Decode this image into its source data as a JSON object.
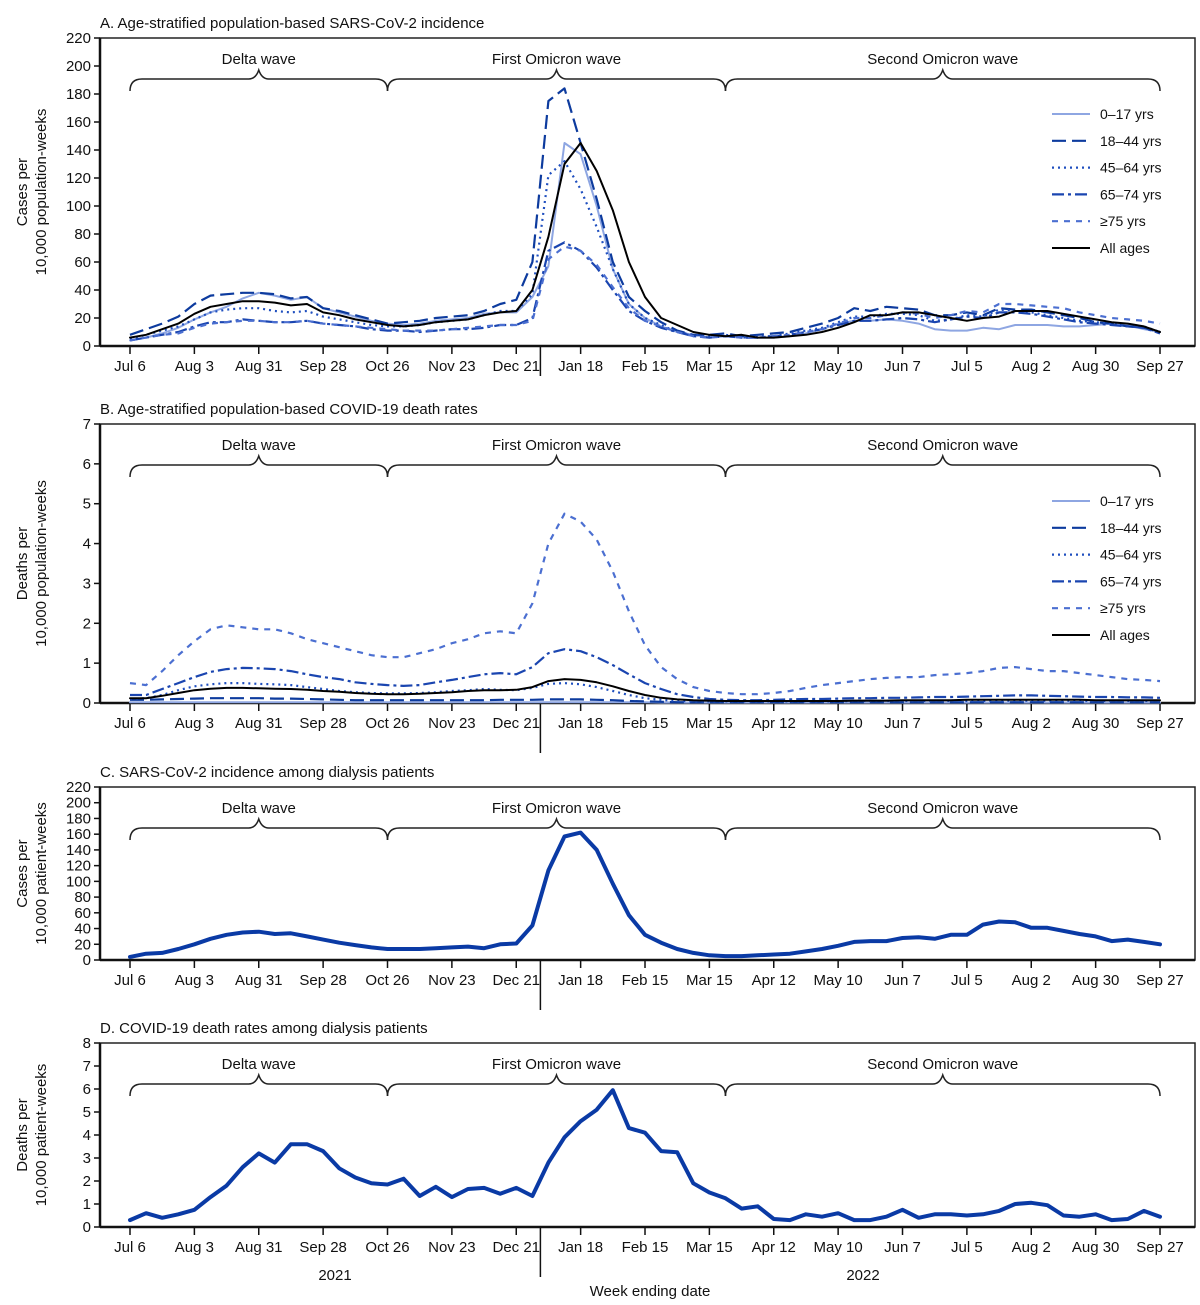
{
  "weeks": [
    "Jul 6",
    "Jul 13",
    "Jul 20",
    "Jul 27",
    "Aug 3",
    "Aug 10",
    "Aug 17",
    "Aug 24",
    "Aug 31",
    "Sep 7",
    "Sep 14",
    "Sep 21",
    "Sep 28",
    "Oct 5",
    "Oct 12",
    "Oct 19",
    "Oct 26",
    "Nov 2",
    "Nov 9",
    "Nov 16",
    "Nov 23",
    "Nov 30",
    "Dec 7",
    "Dec 14",
    "Dec 21",
    "Dec 28",
    "Jan 4",
    "Jan 11",
    "Jan 18",
    "Jan 25",
    "Feb 1",
    "Feb 8",
    "Feb 15",
    "Feb 22",
    "Mar 1",
    "Mar 8",
    "Mar 15",
    "Mar 22",
    "Mar 29",
    "Apr 5",
    "Apr 12",
    "Apr 19",
    "Apr 26",
    "May 3",
    "May 10",
    "May 17",
    "May 24",
    "May 31",
    "Jun 7",
    "Jun 14",
    "Jun 21",
    "Jun 28",
    "Jul 5",
    "Jul 12",
    "Jul 19",
    "Jul 26",
    "Aug 2",
    "Aug 9",
    "Aug 16",
    "Aug 23",
    "Aug 30",
    "Sep 6",
    "Sep 13",
    "Sep 20",
    "Sep 27"
  ],
  "x_tick_labels": [
    "Jul 6",
    "Aug 3",
    "Aug 31",
    "Sep 28",
    "Oct 26",
    "Nov 23",
    "Dec 21",
    "Jan 18",
    "Feb 15",
    "Mar 15",
    "Apr 12",
    "May 10",
    "Jun 7",
    "Jul 5",
    "Aug 2",
    "Aug 30",
    "Sep 27"
  ],
  "years": [
    "2021",
    "2022"
  ],
  "xlabel": "Week ending date",
  "waves": [
    {
      "label": "Delta wave",
      "start": "Jul 6",
      "end": "Oct 26"
    },
    {
      "label": "First Omicron wave",
      "start": "Oct 26",
      "end": "Mar 22"
    },
    {
      "label": "Second Omicron wave",
      "start": "Mar 22",
      "end": "Sep 27"
    }
  ],
  "colors": {
    "age_0_17": "#8ea6e2",
    "age_18_44": "#0d3b9e",
    "age_45_64": "#1f4fbf",
    "age_65_74": "#1a45b0",
    "age_75": "#4b6fd1",
    "all": "#000000",
    "dialysis": "#0a3aa5"
  },
  "chart_data": [
    {
      "type": "line",
      "title": "A. Age-stratified population-based SARS-CoV-2 incidence",
      "ylabel": [
        "Cases per",
        "10,000 population-weeks"
      ],
      "ylim": [
        0,
        220
      ],
      "ytick_step": 20,
      "legend": "right",
      "series": [
        {
          "name": "0–17 yrs",
          "style": "solid-light",
          "values": [
            4,
            6,
            9,
            13,
            19,
            24,
            28,
            34,
            38,
            36,
            33,
            35,
            27,
            24,
            21,
            18,
            16,
            15,
            16,
            18,
            19,
            20,
            23,
            24,
            24,
            35,
            57,
            145,
            137,
            100,
            55,
            30,
            20,
            14,
            10,
            8,
            6,
            7,
            6,
            6,
            6,
            7,
            9,
            12,
            16,
            18,
            18,
            19,
            18,
            16,
            12,
            11,
            11,
            13,
            12,
            15,
            15,
            15,
            14,
            14,
            15,
            16,
            15,
            12,
            10
          ]
        },
        {
          "name": "18–44 yrs",
          "style": "long-dash",
          "values": [
            8,
            12,
            16,
            21,
            30,
            36,
            37,
            38,
            38,
            37,
            34,
            35,
            27,
            25,
            22,
            19,
            16,
            17,
            18,
            20,
            21,
            22,
            25,
            30,
            33,
            60,
            175,
            184,
            145,
            105,
            60,
            35,
            25,
            17,
            11,
            8,
            8,
            9,
            7,
            8,
            9,
            10,
            13,
            16,
            20,
            27,
            25,
            28,
            27,
            26,
            22,
            22,
            24,
            22,
            27,
            26,
            26,
            24,
            22,
            20,
            17,
            16,
            14,
            13,
            10
          ]
        },
        {
          "name": "45–64 yrs",
          "style": "dotted",
          "values": [
            5,
            8,
            11,
            14,
            19,
            24,
            26,
            27,
            27,
            25,
            24,
            25,
            21,
            19,
            17,
            15,
            14,
            14,
            15,
            17,
            18,
            19,
            22,
            25,
            25,
            37,
            122,
            132,
            112,
            85,
            55,
            30,
            20,
            15,
            10,
            8,
            7,
            8,
            6,
            7,
            7,
            9,
            11,
            13,
            17,
            21,
            21,
            23,
            23,
            22,
            18,
            19,
            22,
            21,
            26,
            25,
            24,
            22,
            20,
            18,
            17,
            16,
            14,
            14,
            10
          ]
        },
        {
          "name": "65–74 yrs",
          "style": "dash-dot",
          "values": [
            4,
            6,
            8,
            10,
            14,
            17,
            17,
            19,
            18,
            17,
            17,
            18,
            16,
            15,
            14,
            12,
            11,
            11,
            10,
            11,
            12,
            12,
            13,
            15,
            15,
            20,
            68,
            74,
            68,
            56,
            40,
            25,
            18,
            13,
            10,
            7,
            6,
            7,
            6,
            6,
            7,
            8,
            10,
            12,
            15,
            18,
            18,
            19,
            20,
            19,
            17,
            19,
            21,
            20,
            24,
            24,
            23,
            21,
            19,
            17,
            16,
            15,
            14,
            13,
            9
          ]
        },
        {
          "name": "≥75 yrs",
          "style": "short-dash",
          "values": [
            4,
            6,
            8,
            9,
            13,
            16,
            17,
            18,
            18,
            17,
            17,
            18,
            16,
            15,
            14,
            13,
            12,
            11,
            11,
            11,
            12,
            13,
            14,
            15,
            15,
            18,
            62,
            71,
            68,
            58,
            42,
            27,
            18,
            14,
            10,
            7,
            6,
            7,
            6,
            6,
            7,
            8,
            10,
            12,
            16,
            20,
            20,
            22,
            24,
            23,
            20,
            22,
            25,
            24,
            30,
            30,
            29,
            28,
            27,
            24,
            22,
            20,
            19,
            18,
            16
          ]
        },
        {
          "name": "All ages",
          "style": "solid-black",
          "values": [
            6,
            8,
            12,
            16,
            23,
            28,
            30,
            32,
            32,
            31,
            29,
            30,
            24,
            22,
            19,
            17,
            15,
            14,
            15,
            17,
            18,
            19,
            22,
            24,
            25,
            40,
            78,
            130,
            145,
            125,
            97,
            60,
            35,
            20,
            15,
            10,
            8,
            7,
            8,
            6,
            6,
            7,
            8,
            10,
            13,
            17,
            22,
            22,
            24,
            24,
            22,
            20,
            18,
            20,
            21,
            25,
            25,
            25,
            23,
            21,
            19,
            17,
            16,
            14,
            10
          ]
        }
      ]
    },
    {
      "type": "line",
      "title": "B. Age-stratified population-based COVID-19 death rates",
      "ylabel": [
        "Deaths per",
        "10,000 population-weeks"
      ],
      "ylim": [
        0,
        7
      ],
      "ytick_step": 1,
      "legend": "right",
      "series": [
        {
          "name": "0–17 yrs",
          "style": "solid-light",
          "values": [
            0.02,
            0.02,
            0.02,
            0.02,
            0.02,
            0.02,
            0.02,
            0.02,
            0.02,
            0.02,
            0.02,
            0.02,
            0.02,
            0.02,
            0.02,
            0.02,
            0.02,
            0.02,
            0.02,
            0.02,
            0.02,
            0.02,
            0.02,
            0.02,
            0.02,
            0.02,
            0.02,
            0.02,
            0.02,
            0.02,
            0.02,
            0.02,
            0.02,
            0.01,
            0.01,
            0.01,
            0.01,
            0.01,
            0.01,
            0.01,
            0.01,
            0.01,
            0.01,
            0.01,
            0.01,
            0.01,
            0.01,
            0.01,
            0.01,
            0.01,
            0.01,
            0.01,
            0.01,
            0.01,
            0.01,
            0.01,
            0.01,
            0.01,
            0.01,
            0.01,
            0.01,
            0.01,
            0.01,
            0.01,
            0.01
          ]
        },
        {
          "name": "18–44 yrs",
          "style": "long-dash",
          "values": [
            0.08,
            0.08,
            0.09,
            0.1,
            0.11,
            0.12,
            0.12,
            0.12,
            0.12,
            0.11,
            0.11,
            0.1,
            0.09,
            0.08,
            0.07,
            0.07,
            0.07,
            0.07,
            0.07,
            0.07,
            0.07,
            0.07,
            0.07,
            0.08,
            0.08,
            0.08,
            0.09,
            0.09,
            0.09,
            0.08,
            0.07,
            0.05,
            0.04,
            0.03,
            0.02,
            0.02,
            0.02,
            0.02,
            0.02,
            0.02,
            0.02,
            0.02,
            0.02,
            0.02,
            0.02,
            0.02,
            0.02,
            0.02,
            0.02,
            0.02,
            0.02,
            0.02,
            0.02,
            0.02,
            0.02,
            0.02,
            0.02,
            0.02,
            0.02,
            0.02,
            0.02,
            0.02,
            0.02,
            0.02,
            0.02
          ]
        },
        {
          "name": "45–64 yrs",
          "style": "dotted",
          "values": [
            0.1,
            0.12,
            0.2,
            0.32,
            0.42,
            0.47,
            0.5,
            0.5,
            0.48,
            0.47,
            0.45,
            0.4,
            0.35,
            0.3,
            0.27,
            0.25,
            0.24,
            0.24,
            0.25,
            0.27,
            0.3,
            0.32,
            0.35,
            0.33,
            0.32,
            0.38,
            0.48,
            0.5,
            0.47,
            0.4,
            0.3,
            0.2,
            0.12,
            0.08,
            0.05,
            0.04,
            0.04,
            0.04,
            0.04,
            0.04,
            0.04,
            0.04,
            0.04,
            0.04,
            0.04,
            0.05,
            0.05,
            0.05,
            0.05,
            0.05,
            0.05,
            0.05,
            0.05,
            0.05,
            0.06,
            0.06,
            0.06,
            0.06,
            0.06,
            0.05,
            0.05,
            0.05,
            0.05,
            0.05,
            0.05
          ]
        },
        {
          "name": "65–74 yrs",
          "style": "dash-dot",
          "values": [
            0.2,
            0.2,
            0.35,
            0.5,
            0.65,
            0.78,
            0.85,
            0.88,
            0.87,
            0.85,
            0.8,
            0.72,
            0.65,
            0.6,
            0.52,
            0.48,
            0.45,
            0.43,
            0.45,
            0.52,
            0.58,
            0.65,
            0.72,
            0.75,
            0.72,
            0.9,
            1.25,
            1.35,
            1.3,
            1.15,
            0.95,
            0.72,
            0.5,
            0.35,
            0.22,
            0.15,
            0.1,
            0.08,
            0.07,
            0.07,
            0.08,
            0.09,
            0.1,
            0.1,
            0.11,
            0.12,
            0.12,
            0.13,
            0.13,
            0.14,
            0.15,
            0.15,
            0.16,
            0.17,
            0.18,
            0.19,
            0.19,
            0.18,
            0.17,
            0.16,
            0.15,
            0.15,
            0.14,
            0.14,
            0.13
          ]
        },
        {
          "name": "≥75 yrs",
          "style": "short-dash",
          "values": [
            0.5,
            0.45,
            0.8,
            1.2,
            1.55,
            1.85,
            1.95,
            1.9,
            1.85,
            1.85,
            1.75,
            1.6,
            1.5,
            1.4,
            1.3,
            1.2,
            1.15,
            1.15,
            1.25,
            1.35,
            1.5,
            1.6,
            1.75,
            1.8,
            1.75,
            2.5,
            4.0,
            4.75,
            4.55,
            4.1,
            3.3,
            2.3,
            1.45,
            0.9,
            0.6,
            0.4,
            0.3,
            0.25,
            0.22,
            0.22,
            0.25,
            0.3,
            0.38,
            0.45,
            0.5,
            0.55,
            0.6,
            0.63,
            0.65,
            0.65,
            0.7,
            0.72,
            0.75,
            0.8,
            0.88,
            0.9,
            0.85,
            0.8,
            0.8,
            0.75,
            0.7,
            0.65,
            0.6,
            0.58,
            0.55
          ]
        },
        {
          "name": "All ages",
          "style": "solid-black",
          "values": [
            0.12,
            0.12,
            0.18,
            0.25,
            0.32,
            0.36,
            0.38,
            0.38,
            0.37,
            0.36,
            0.35,
            0.33,
            0.3,
            0.28,
            0.25,
            0.23,
            0.22,
            0.22,
            0.23,
            0.25,
            0.27,
            0.3,
            0.32,
            0.32,
            0.33,
            0.4,
            0.55,
            0.6,
            0.58,
            0.52,
            0.42,
            0.3,
            0.2,
            0.13,
            0.09,
            0.07,
            0.06,
            0.05,
            0.05,
            0.05,
            0.05,
            0.05,
            0.05,
            0.05,
            0.05,
            0.06,
            0.06,
            0.06,
            0.07,
            0.07,
            0.07,
            0.07,
            0.08,
            0.08,
            0.08,
            0.08,
            0.08,
            0.08,
            0.08,
            0.08,
            0.07,
            0.07,
            0.07,
            0.07,
            0.07
          ]
        }
      ]
    },
    {
      "type": "line",
      "title": "C. SARS-CoV-2 incidence among dialysis patients",
      "ylabel": [
        "Cases per",
        "10,000 patient-weeks"
      ],
      "ylim": [
        0,
        220
      ],
      "ytick_step": 20,
      "series": [
        {
          "style": "thick",
          "values": [
            4,
            8,
            9,
            14,
            20,
            27,
            32,
            35,
            36,
            33,
            34,
            30,
            26,
            22,
            19,
            16,
            14,
            14,
            14,
            15,
            16,
            17,
            15,
            20,
            21,
            44,
            114,
            157,
            162,
            140,
            97,
            57,
            32,
            22,
            14,
            9,
            6,
            5,
            5,
            6,
            7,
            8,
            11,
            14,
            18,
            23,
            24,
            24,
            28,
            29,
            27,
            32,
            32,
            45,
            49,
            48,
            41,
            41,
            37,
            33,
            30,
            24,
            26,
            23,
            20
          ]
        }
      ]
    },
    {
      "type": "line",
      "title": "D. COVID-19 death rates among dialysis patients",
      "ylabel": [
        "Deaths per",
        "10,000 patient-weeks"
      ],
      "ylim": [
        0,
        8
      ],
      "ytick_step": 1,
      "series": [
        {
          "style": "thick",
          "values": [
            0.3,
            0.6,
            0.4,
            0.55,
            0.75,
            1.3,
            1.8,
            2.6,
            3.2,
            2.8,
            3.6,
            3.6,
            3.3,
            2.55,
            2.15,
            1.9,
            1.85,
            2.1,
            1.35,
            1.75,
            1.3,
            1.65,
            1.7,
            1.45,
            1.7,
            1.35,
            2.8,
            3.9,
            4.6,
            5.1,
            5.95,
            4.3,
            4.1,
            3.3,
            3.25,
            1.9,
            1.5,
            1.25,
            0.8,
            0.9,
            0.35,
            0.3,
            0.55,
            0.45,
            0.6,
            0.3,
            0.3,
            0.45,
            0.75,
            0.4,
            0.55,
            0.55,
            0.5,
            0.55,
            0.7,
            1.0,
            1.05,
            0.95,
            0.5,
            0.45,
            0.55,
            0.3,
            0.35,
            0.7,
            0.45
          ]
        }
      ]
    }
  ]
}
